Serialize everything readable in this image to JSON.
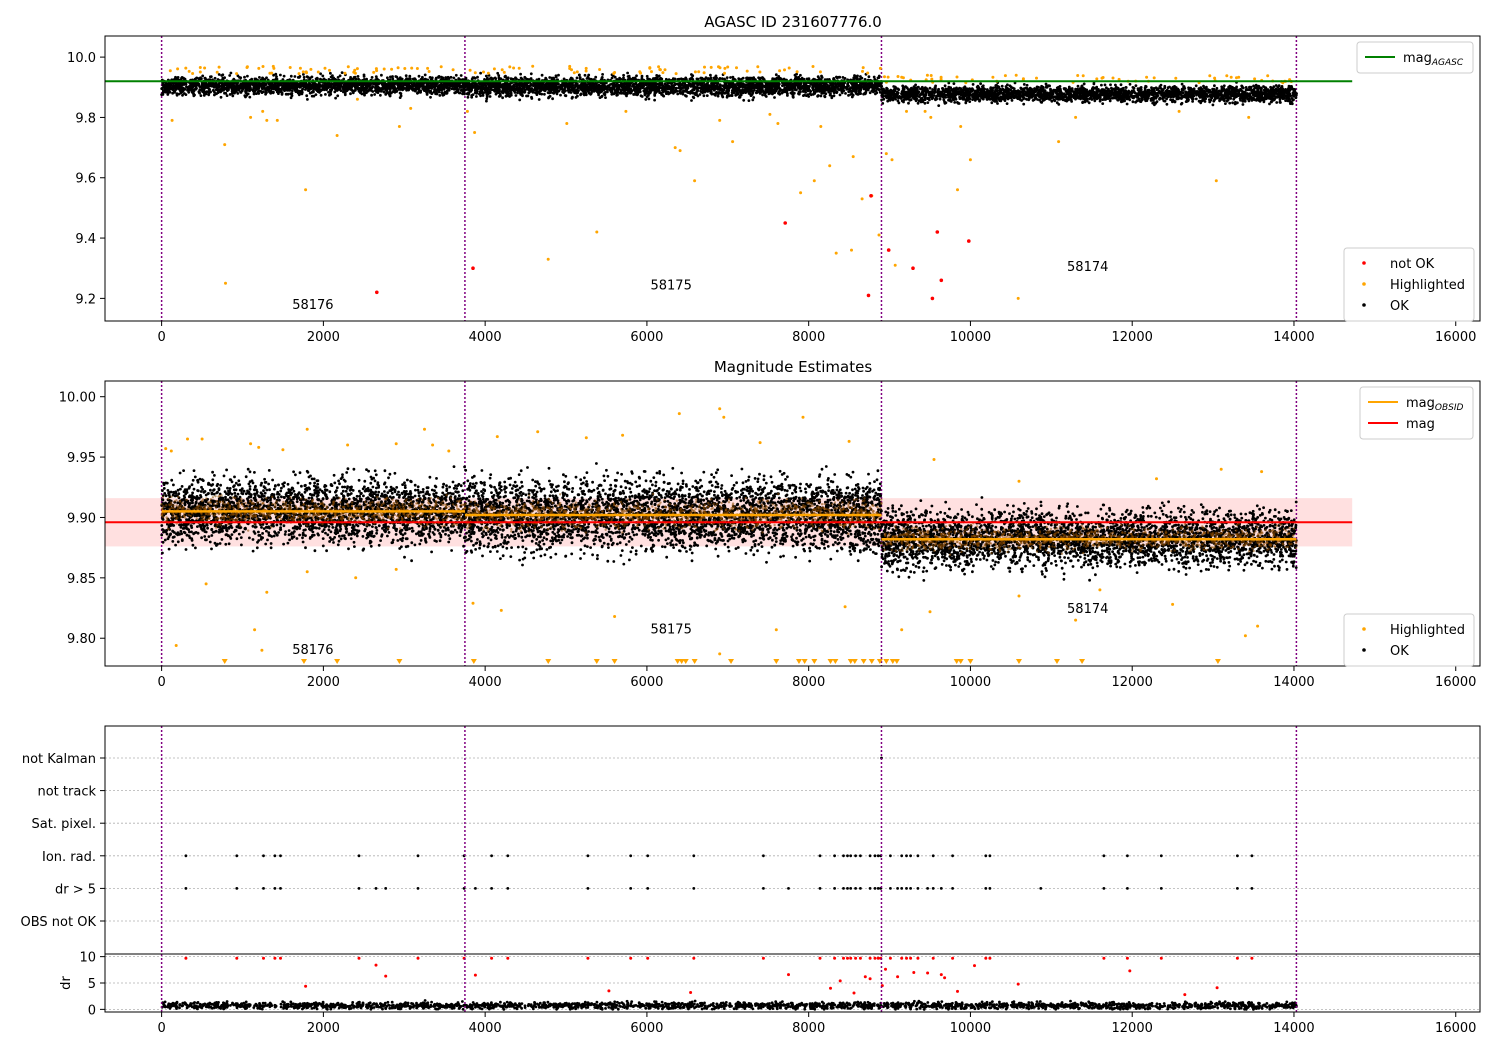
{
  "chart_data": [
    {
      "type": "scatter",
      "title": "AGASC ID 231607776.0",
      "xlim": [
        -700,
        16300
      ],
      "ylim": [
        9.125,
        10.07
      ],
      "x_ticks": [
        0,
        2000,
        4000,
        6000,
        8000,
        10000,
        12000,
        14000,
        16000
      ],
      "x_tick_labels": [
        "0",
        "2000",
        "4000",
        "6000",
        "8000",
        "10000",
        "12000",
        "14000",
        "16000"
      ],
      "y_ticks": [
        9.2,
        9.4,
        9.6,
        9.8,
        10.0
      ],
      "y_tick_labels": [
        "9.2",
        "9.4",
        "9.6",
        "9.8",
        "10.0"
      ],
      "obsid_boundaries": [
        0,
        3750,
        8900,
        14030
      ],
      "obsid_labels": [
        {
          "text": "58176",
          "x": 1870,
          "y": 9.165
        },
        {
          "text": "58175",
          "x": 6300,
          "y": 9.23
        },
        {
          "text": "58174",
          "x": 11450,
          "y": 9.29
        }
      ],
      "legend_upper": {
        "position": "upper right",
        "entries": [
          {
            "label": "mag",
            "sub": "AGASC",
            "color": "#008000",
            "kind": "line"
          }
        ]
      },
      "legend_lower": {
        "position": "lower right",
        "entries": [
          {
            "label": "not OK",
            "color": "#ff0000",
            "kind": "marker"
          },
          {
            "label": "Highlighted",
            "color": "#ffa500",
            "kind": "marker"
          },
          {
            "label": "OK",
            "color": "#000000",
            "kind": "marker"
          }
        ]
      },
      "reference_line": {
        "name": "mag_AGASC",
        "y": 9.92,
        "x": [
          -700,
          14720
        ],
        "color": "#008000"
      },
      "ok_bands": [
        {
          "x": [
            0,
            3750
          ],
          "center": 9.905,
          "spread": 0.05
        },
        {
          "x": [
            3750,
            8900
          ],
          "center": 9.903,
          "spread": 0.055
        },
        {
          "x": [
            8900,
            14030
          ],
          "center": 9.878,
          "spread": 0.045
        }
      ],
      "highlighted_points": [
        [
          130,
          9.79
        ],
        [
          780,
          9.71
        ],
        [
          1300,
          9.79
        ],
        [
          1430,
          9.79
        ],
        [
          1780,
          9.56
        ],
        [
          2170,
          9.74
        ],
        [
          2940,
          9.77
        ],
        [
          3080,
          9.83
        ],
        [
          3780,
          9.82
        ],
        [
          3870,
          9.75
        ],
        [
          4780,
          9.33
        ],
        [
          5010,
          9.78
        ],
        [
          5380,
          9.42
        ],
        [
          5740,
          9.82
        ],
        [
          6410,
          9.69
        ],
        [
          6590,
          9.59
        ],
        [
          6900,
          9.79
        ],
        [
          7060,
          9.72
        ],
        [
          7520,
          9.81
        ],
        [
          7620,
          9.78
        ],
        [
          7900,
          9.55
        ],
        [
          8070,
          9.59
        ],
        [
          8260,
          9.64
        ],
        [
          8340,
          9.35
        ],
        [
          8530,
          9.36
        ],
        [
          8550,
          9.67
        ],
        [
          8660,
          9.53
        ],
        [
          8780,
          9.54
        ],
        [
          8870,
          9.41
        ],
        [
          8960,
          9.68
        ],
        [
          9030,
          9.66
        ],
        [
          9070,
          9.31
        ],
        [
          9210,
          9.82
        ],
        [
          9440,
          9.82
        ],
        [
          9510,
          9.8
        ],
        [
          9840,
          9.56
        ],
        [
          9880,
          9.77
        ],
        [
          10000,
          9.66
        ],
        [
          10590,
          9.2
        ],
        [
          11090,
          9.72
        ],
        [
          11300,
          9.8
        ],
        [
          12580,
          9.82
        ],
        [
          13040,
          9.59
        ],
        [
          13440,
          9.8
        ],
        [
          790,
          9.25
        ],
        [
          1100,
          9.8
        ],
        [
          1250,
          9.82
        ],
        [
          2420,
          9.86
        ],
        [
          6350,
          9.7
        ],
        [
          8150,
          9.77
        ]
      ],
      "not_ok_points": [
        [
          2660,
          9.22
        ],
        [
          3850,
          9.3
        ],
        [
          7710,
          9.45
        ],
        [
          8740,
          9.21
        ],
        [
          8770,
          9.54
        ],
        [
          8990,
          9.36
        ],
        [
          9290,
          9.3
        ],
        [
          9530,
          9.2
        ],
        [
          9590,
          9.42
        ],
        [
          9640,
          9.26
        ],
        [
          9980,
          9.39
        ]
      ]
    },
    {
      "type": "scatter",
      "title": "Magnitude Estimates",
      "xlim": [
        -700,
        16300
      ],
      "ylim": [
        9.777,
        10.013
      ],
      "x_ticks": [
        0,
        2000,
        4000,
        6000,
        8000,
        10000,
        12000,
        14000,
        16000
      ],
      "x_tick_labels": [
        "0",
        "2000",
        "4000",
        "6000",
        "8000",
        "10000",
        "12000",
        "14000",
        "16000"
      ],
      "y_ticks": [
        9.8,
        9.85,
        9.9,
        9.95,
        10.0
      ],
      "y_tick_labels": [
        "9.80",
        "9.85",
        "9.90",
        "9.95",
        "10.00"
      ],
      "obsid_boundaries": [
        0,
        3750,
        8900,
        14030
      ],
      "obsid_labels": [
        {
          "text": "58176",
          "x": 1870,
          "y": 9.787
        },
        {
          "text": "58175",
          "x": 6300,
          "y": 9.804
        },
        {
          "text": "58174",
          "x": 11450,
          "y": 9.821
        }
      ],
      "legend_upper": {
        "position": "upper right",
        "entries": [
          {
            "label": "mag",
            "sub": "OBSID",
            "color": "#ffa500",
            "kind": "line"
          },
          {
            "label": "mag",
            "sub": "",
            "color": "#ff0000",
            "kind": "line"
          }
        ]
      },
      "legend_lower": {
        "position": "lower right",
        "entries": [
          {
            "label": "Highlighted",
            "color": "#ffa500",
            "kind": "marker"
          },
          {
            "label": "OK",
            "color": "#000000",
            "kind": "marker"
          }
        ]
      },
      "mag_line": {
        "name": "mag",
        "y": 9.896,
        "band": [
          9.876,
          9.916
        ],
        "x": [
          -700,
          14720
        ],
        "color": "#ff0000"
      },
      "obsid_mags": [
        {
          "x": [
            0,
            3750
          ],
          "y": 9.905
        },
        {
          "x": [
            3750,
            8900
          ],
          "y": 9.902
        },
        {
          "x": [
            8900,
            14030
          ],
          "y": 9.882
        }
      ],
      "ok_bands": [
        {
          "x": [
            0,
            3750
          ],
          "center": 9.905,
          "spread": 0.045
        },
        {
          "x": [
            3750,
            8900
          ],
          "center": 9.902,
          "spread": 0.05
        },
        {
          "x": [
            8900,
            14030
          ],
          "center": 9.882,
          "spread": 0.04
        }
      ],
      "highlighted_points": [
        [
          50,
          9.957
        ],
        [
          120,
          9.955
        ],
        [
          320,
          9.965
        ],
        [
          500,
          9.965
        ],
        [
          1100,
          9.961
        ],
        [
          1200,
          9.958
        ],
        [
          1500,
          9.956
        ],
        [
          1800,
          9.973
        ],
        [
          2300,
          9.96
        ],
        [
          2900,
          9.961
        ],
        [
          3250,
          9.973
        ],
        [
          3350,
          9.96
        ],
        [
          3550,
          9.955
        ],
        [
          4150,
          9.967
        ],
        [
          4650,
          9.971
        ],
        [
          5250,
          9.966
        ],
        [
          5700,
          9.968
        ],
        [
          6400,
          9.986
        ],
        [
          6900,
          9.99
        ],
        [
          6950,
          9.983
        ],
        [
          7400,
          9.962
        ],
        [
          7930,
          9.983
        ],
        [
          8500,
          9.963
        ],
        [
          1800,
          9.855
        ],
        [
          2400,
          9.85
        ],
        [
          2900,
          9.857
        ],
        [
          550,
          9.845
        ],
        [
          1300,
          9.838
        ],
        [
          4200,
          9.823
        ],
        [
          3850,
          9.829
        ],
        [
          5600,
          9.818
        ],
        [
          7600,
          9.807
        ],
        [
          8450,
          9.826
        ],
        [
          9500,
          9.822
        ],
        [
          10600,
          9.835
        ],
        [
          11300,
          9.815
        ],
        [
          12500,
          9.828
        ],
        [
          13400,
          9.802
        ],
        [
          13550,
          9.81
        ],
        [
          1150,
          9.807
        ],
        [
          1240,
          9.79
        ],
        [
          180,
          9.794
        ],
        [
          6900,
          9.787
        ],
        [
          9150,
          9.807
        ],
        [
          9550,
          9.948
        ],
        [
          10600,
          9.93
        ],
        [
          12300,
          9.932
        ],
        [
          13100,
          9.94
        ],
        [
          13600,
          9.938
        ],
        [
          11600,
          9.84
        ]
      ],
      "off_scale_x": [
        780,
        1760,
        2170,
        2940,
        3860,
        4780,
        5380,
        5600,
        6380,
        6430,
        6480,
        6590,
        7040,
        7600,
        7880,
        7950,
        8070,
        8270,
        8330,
        8520,
        8570,
        8680,
        8780,
        8880,
        8960,
        9040,
        9090,
        9830,
        9880,
        10000,
        10600,
        11070,
        11380,
        13060
      ]
    },
    {
      "type": "scatter",
      "title": "",
      "xlim": [
        -700,
        16300
      ],
      "x_ticks": [
        0,
        2000,
        4000,
        6000,
        8000,
        10000,
        12000,
        14000,
        16000
      ],
      "x_tick_labels": [
        "0",
        "2000",
        "4000",
        "6000",
        "8000",
        "10000",
        "12000",
        "14000",
        "16000"
      ],
      "flag_rows": [
        "not Kalman",
        "not track",
        "Sat. pixel.",
        "Ion. rad.",
        "dr > 5",
        "OBS not OK"
      ],
      "obsid_boundaries": [
        0,
        3750,
        8900,
        14030
      ],
      "ion_rad_x": [
        300,
        930,
        1260,
        1400,
        1470,
        2440,
        3170,
        3740,
        4080,
        4280,
        5270,
        5800,
        6010,
        6580,
        7440,
        8140,
        8320,
        8430,
        8480,
        8520,
        8580,
        8640,
        8760,
        8820,
        8860,
        8890,
        9010,
        9150,
        9210,
        9260,
        9350,
        9540,
        9780,
        10190,
        10240,
        11650,
        11940,
        12360,
        13300,
        13480
      ],
      "dr_gt5_x": [
        300,
        930,
        1260,
        1400,
        1470,
        2440,
        2650,
        2770,
        3170,
        3740,
        3880,
        4080,
        4280,
        5270,
        5800,
        6010,
        6580,
        7440,
        7750,
        8140,
        8320,
        8430,
        8480,
        8520,
        8580,
        8640,
        8760,
        8820,
        8860,
        8890,
        9010,
        9100,
        9150,
        9210,
        9260,
        9350,
        9470,
        9540,
        9640,
        9780,
        10190,
        10240,
        10870,
        11650,
        11940,
        12360,
        13300,
        13480
      ],
      "not_kalman_x": [
        8900
      ],
      "dr_panel": {
        "ylabel": "dr",
        "ylim": [
          -0.5,
          10.5
        ],
        "y_ticks": [
          0,
          5,
          10
        ],
        "y_tick_labels": [
          "0",
          "5",
          "10"
        ],
        "ok_band": {
          "x": [
            0,
            14030
          ],
          "center": 0.7,
          "spread": 1.4
        },
        "red_points": [
          [
            300,
            9.7
          ],
          [
            930,
            9.7
          ],
          [
            1260,
            9.7
          ],
          [
            1400,
            9.7
          ],
          [
            1470,
            9.7
          ],
          [
            2440,
            9.7
          ],
          [
            3170,
            9.7
          ],
          [
            3740,
            9.7
          ],
          [
            4080,
            9.7
          ],
          [
            4280,
            9.7
          ],
          [
            5270,
            9.7
          ],
          [
            5800,
            9.7
          ],
          [
            6010,
            9.7
          ],
          [
            6580,
            9.7
          ],
          [
            7440,
            9.7
          ],
          [
            8140,
            9.7
          ],
          [
            8320,
            9.7
          ],
          [
            8430,
            9.7
          ],
          [
            8480,
            9.7
          ],
          [
            8520,
            9.7
          ],
          [
            8580,
            9.7
          ],
          [
            8640,
            9.7
          ],
          [
            8760,
            9.7
          ],
          [
            8820,
            9.7
          ],
          [
            8860,
            9.7
          ],
          [
            8890,
            9.7
          ],
          [
            9010,
            9.7
          ],
          [
            9150,
            9.7
          ],
          [
            9210,
            9.7
          ],
          [
            9260,
            9.7
          ],
          [
            9350,
            9.7
          ],
          [
            9540,
            9.7
          ],
          [
            9780,
            9.7
          ],
          [
            10190,
            9.7
          ],
          [
            10240,
            9.7
          ],
          [
            11650,
            9.7
          ],
          [
            11940,
            9.7
          ],
          [
            12360,
            9.7
          ],
          [
            13300,
            9.7
          ],
          [
            13480,
            9.7
          ],
          [
            1780,
            4.4
          ],
          [
            2650,
            8.4
          ],
          [
            2770,
            6.3
          ],
          [
            3880,
            6.5
          ],
          [
            5530,
            3.5
          ],
          [
            7750,
            6.6
          ],
          [
            8270,
            4.0
          ],
          [
            8390,
            5.4
          ],
          [
            8560,
            3.1
          ],
          [
            8700,
            6.2
          ],
          [
            8760,
            5.8
          ],
          [
            8950,
            7.6
          ],
          [
            9100,
            6.2
          ],
          [
            9300,
            7.0
          ],
          [
            9470,
            6.9
          ],
          [
            9640,
            6.6
          ],
          [
            9840,
            3.4
          ],
          [
            10050,
            8.3
          ],
          [
            10590,
            4.8
          ],
          [
            11970,
            7.3
          ],
          [
            13050,
            4.1
          ],
          [
            9680,
            6.0
          ],
          [
            8910,
            4.5
          ],
          [
            6540,
            3.2
          ],
          [
            12650,
            2.8
          ]
        ]
      }
    }
  ]
}
